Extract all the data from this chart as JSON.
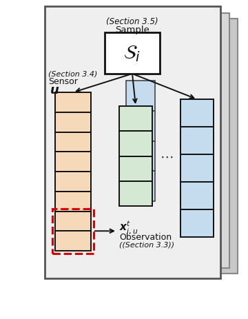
{
  "bg_color": "#ffffff",
  "main_panel_color": "#efefef",
  "back1_panel_color": "#e0e0e0",
  "back2_panel_color": "#d0d0d0",
  "orange_color": "#f5d9b8",
  "green_color": "#d5e8d4",
  "blue_color": "#c5dcee",
  "white_color": "#ffffff",
  "edge_dark": "#111111",
  "edge_mid": "#555555",
  "edge_light": "#888888",
  "red_dash": "#dd0000",
  "text_color": "#111111",
  "title_section": "(Section 3.5)",
  "title_sample": "Sample",
  "sensor_section": "(Section 3.4)",
  "sensor_label": "Sensor",
  "obs_section": "(Section 3.3)"
}
